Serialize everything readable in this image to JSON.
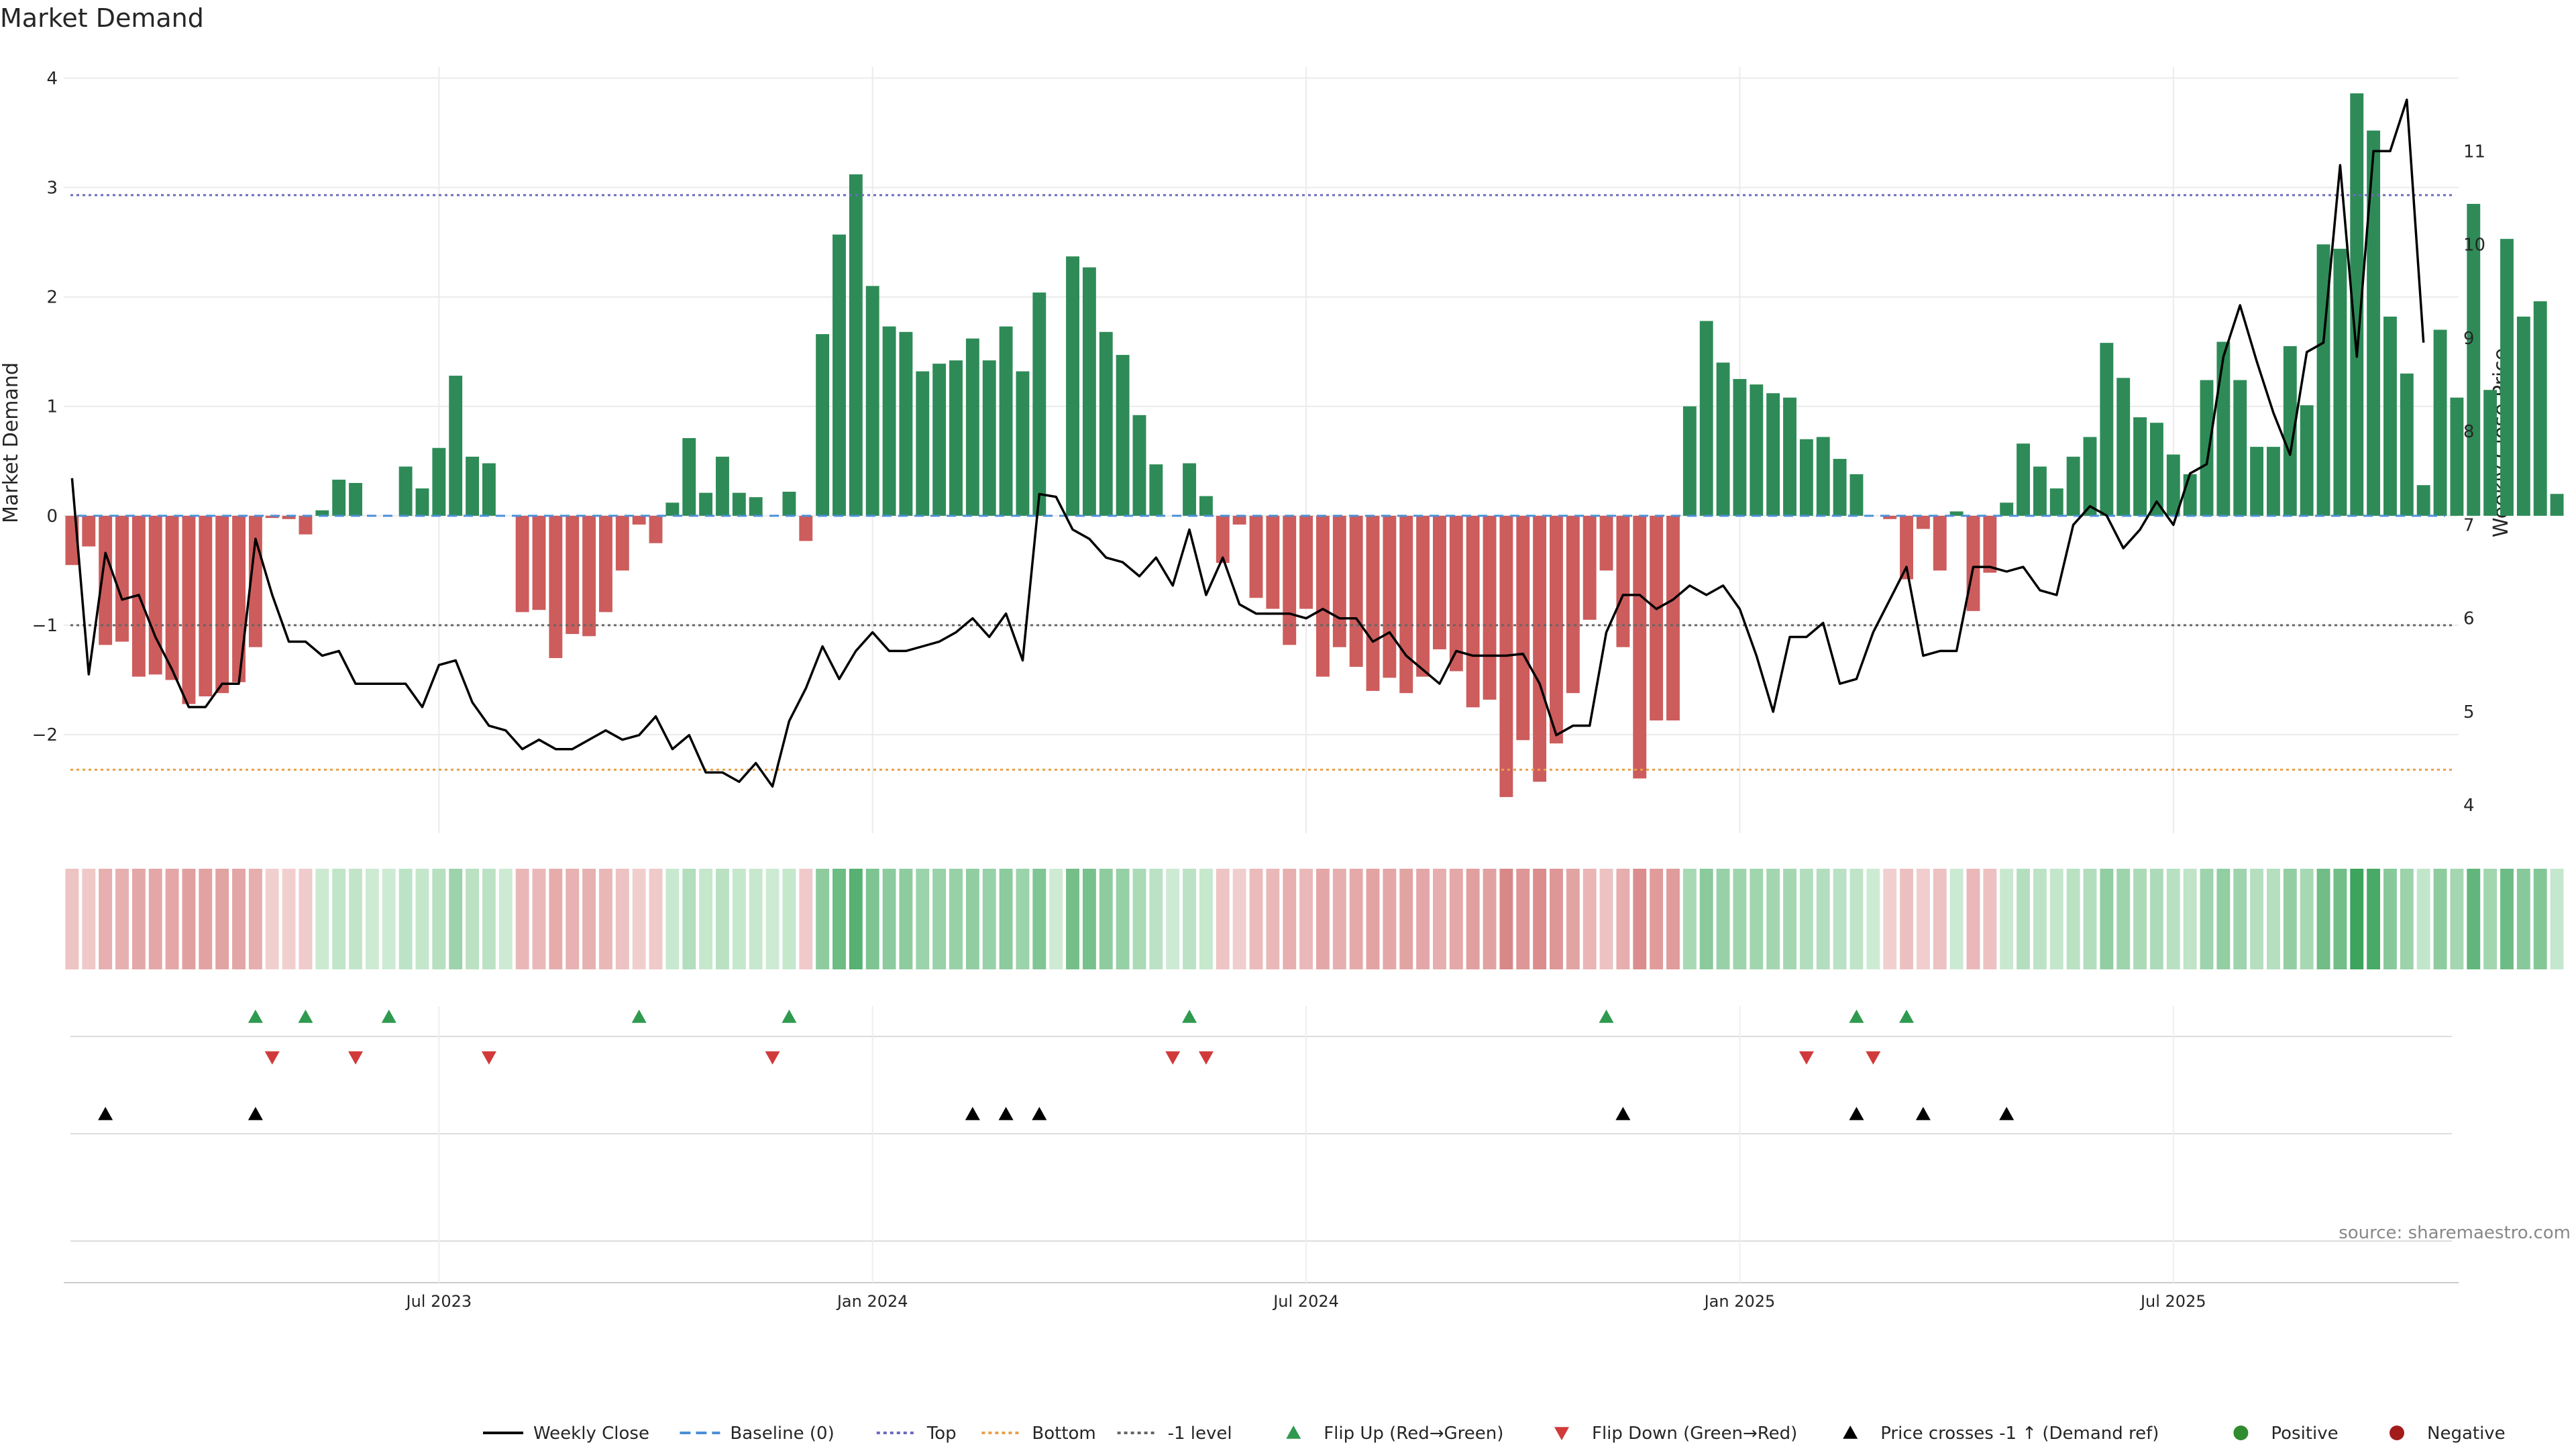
{
  "chart_data": {
    "type": "bar",
    "title": "Market Demand",
    "ylabel_left": "Market Demand",
    "ylabel_right": "Weekly Close Price",
    "ylim_left": [
      -2.9,
      4.1
    ],
    "ylim_right": [
      3.7,
      11.9
    ],
    "yticks_left": [
      {
        "v": 4,
        "label": "4"
      },
      {
        "v": 3,
        "label": "3"
      },
      {
        "v": 2,
        "label": "2"
      },
      {
        "v": 1,
        "label": "1"
      },
      {
        "v": 0,
        "label": "0"
      },
      {
        "v": -1,
        "label": "−1"
      },
      {
        "v": -2,
        "label": "−2"
      }
    ],
    "yticks_right": [
      {
        "v": 11,
        "label": "11"
      },
      {
        "v": 10,
        "label": "10"
      },
      {
        "v": 9,
        "label": "9"
      },
      {
        "v": 8,
        "label": "8"
      },
      {
        "v": 7,
        "label": "7"
      },
      {
        "v": 6,
        "label": "6"
      },
      {
        "v": 5,
        "label": "5"
      },
      {
        "v": 4,
        "label": "4"
      }
    ],
    "x_ticks": [
      {
        "week": 22,
        "label": "Jul 2023"
      },
      {
        "week": 48,
        "label": "Jan 2024"
      },
      {
        "week": 74,
        "label": "Jul 2024"
      },
      {
        "week": 100,
        "label": "Jan 2025"
      },
      {
        "week": 126,
        "label": "Jul 2025"
      }
    ],
    "ref_lines": {
      "baseline": 0,
      "top": 2.93,
      "bottom": -2.32,
      "minus_one": -1
    },
    "demand": [
      -0.45,
      -0.28,
      -1.18,
      -1.15,
      -1.47,
      -1.45,
      -1.5,
      -1.72,
      -1.65,
      -1.62,
      -1.52,
      -1.2,
      -0.02,
      -0.03,
      -0.17,
      0.05,
      0.33,
      0.3,
      0,
      0,
      0.45,
      0.25,
      0.62,
      1.28,
      0.54,
      0.48,
      0,
      -0.88,
      -0.86,
      -1.3,
      -1.08,
      -1.1,
      -0.88,
      -0.5,
      -0.08,
      -0.25,
      0.12,
      0.71,
      0.21,
      0.54,
      0.21,
      0.17,
      0,
      0.22,
      -0.23,
      1.66,
      2.57,
      3.12,
      2.1,
      1.73,
      1.68,
      1.32,
      1.39,
      1.42,
      1.62,
      1.42,
      1.73,
      1.32,
      2.04,
      0,
      2.37,
      2.27,
      1.68,
      1.47,
      0.92,
      0.47,
      0,
      0.48,
      0.18,
      -0.43,
      -0.08,
      -0.75,
      -0.85,
      -1.18,
      -0.85,
      -1.47,
      -1.2,
      -1.38,
      -1.6,
      -1.48,
      -1.62,
      -1.47,
      -1.22,
      -1.42,
      -1.75,
      -1.68,
      -2.57,
      -2.05,
      -2.43,
      -2.08,
      -1.62,
      -0.95,
      -0.5,
      -1.2,
      -2.4,
      -1.87,
      -1.87,
      1.0,
      1.78,
      1.4,
      1.25,
      1.2,
      1.12,
      1.08,
      0.7,
      0.72,
      0.52,
      0.38,
      0,
      -0.03,
      -0.58,
      -0.12,
      -0.5,
      0.04,
      -0.87,
      -0.52,
      0.12,
      0.66,
      0.45,
      0.25,
      0.54,
      0.72,
      1.58,
      1.26,
      0.9,
      0.85,
      0.56,
      0.38,
      1.24,
      1.59,
      1.24,
      0.63,
      0.63,
      1.55,
      1.01,
      2.48,
      2.44,
      3.86,
      3.52,
      1.82,
      1.3,
      0.28,
      1.7,
      1.08,
      2.85,
      1.15,
      2.53,
      1.82,
      1.96,
      0.2
    ],
    "close": [
      7.5,
      5.4,
      6.7,
      6.2,
      6.25,
      5.8,
      5.45,
      5.05,
      5.05,
      5.3,
      5.3,
      6.85,
      6.25,
      5.75,
      5.75,
      5.6,
      5.65,
      5.3,
      5.3,
      5.3,
      5.3,
      5.05,
      5.5,
      5.55,
      5.1,
      4.85,
      4.8,
      4.6,
      4.7,
      4.6,
      4.6,
      4.7,
      4.8,
      4.7,
      4.75,
      4.95,
      4.6,
      4.75,
      4.35,
      4.35,
      4.25,
      4.45,
      4.2,
      4.9,
      5.25,
      5.7,
      5.35,
      5.65,
      5.85,
      5.65,
      5.65,
      5.7,
      5.75,
      5.85,
      6.0,
      5.8,
      6.05,
      5.55,
      7.33,
      7.3,
      6.95,
      6.85,
      6.65,
      6.6,
      6.45,
      6.65,
      6.35,
      6.95,
      6.25,
      6.65,
      6.15,
      6.05,
      6.05,
      6.05,
      6.0,
      6.1,
      6.0,
      6.0,
      5.75,
      5.85,
      5.6,
      5.45,
      5.3,
      5.65,
      5.6,
      5.6,
      5.6,
      5.62,
      5.3,
      4.75,
      4.85,
      4.85,
      5.85,
      6.25,
      6.25,
      6.1,
      6.2,
      6.35,
      6.25,
      6.35,
      6.1,
      5.6,
      5.0,
      5.8,
      5.8,
      5.95,
      5.3,
      5.35,
      5.85,
      6.2,
      6.55,
      5.6,
      5.65,
      5.65,
      6.55,
      6.55,
      6.5,
      6.55,
      6.3,
      6.25,
      7.0,
      7.2,
      7.1,
      6.75,
      6.95,
      7.25,
      7.0,
      7.55,
      7.65,
      8.8,
      9.35,
      8.75,
      8.2,
      7.75,
      8.85,
      8.95,
      10.85,
      8.8,
      11.0,
      11.0,
      11.55,
      8.95
    ],
    "flip_up_weeks": [
      11,
      14,
      19,
      34,
      43,
      67,
      92,
      107,
      110
    ],
    "flip_down_weeks": [
      12,
      17,
      25,
      42,
      66,
      68,
      104,
      108
    ],
    "price_cross_weeks": [
      2,
      11,
      54,
      56,
      58,
      93,
      107,
      111,
      116
    ],
    "legend": [
      {
        "key": "line",
        "label": "Weekly Close",
        "color": "#000000"
      },
      {
        "key": "baseline",
        "label": "Baseline (0)",
        "color": "#4c8fd6"
      },
      {
        "key": "top",
        "label": "Top",
        "color": "#6b6bbf"
      },
      {
        "key": "bottom",
        "label": "Bottom",
        "color": "#e8a04a"
      },
      {
        "key": "minus1",
        "label": "-1 level",
        "color": "#666666"
      },
      {
        "key": "flipup",
        "label": "Flip Up (Red→Green)",
        "color": "#2f9a4f"
      },
      {
        "key": "flipdown",
        "label": "Flip Down (Green→Red)",
        "color": "#d03a3a"
      },
      {
        "key": "cross",
        "label": "Price crosses -1 ↑ (Demand ref)",
        "color": "#000000"
      },
      {
        "key": "pos",
        "label": "Positive",
        "color": "#2e8b2e"
      },
      {
        "key": "neg",
        "label": "Negative",
        "color": "#a31c1c"
      }
    ],
    "source": "source: sharemaestro.com"
  },
  "colors": {
    "positive_bar": "#2e8b57",
    "negative_bar": "#cd5c5c",
    "line": "#000000",
    "grid": "#ebebeb"
  }
}
